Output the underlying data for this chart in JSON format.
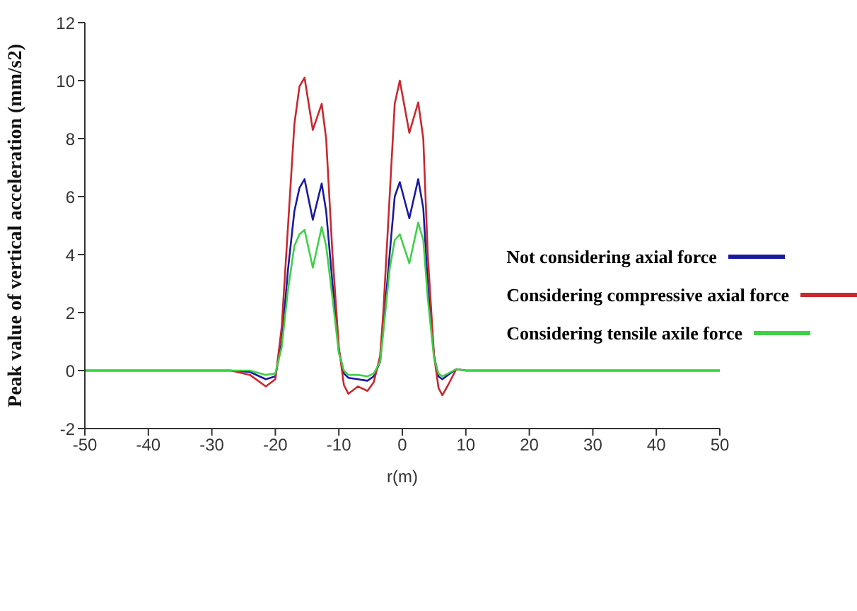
{
  "chart_data": {
    "type": "line",
    "xlabel": "r(m)",
    "ylabel": "Peak value of vertical acceleration (mm/s2)",
    "x": [
      -50,
      -27,
      -24,
      -21.5,
      -20,
      -19,
      -18,
      -17,
      -16.2,
      -15.4,
      -14.1,
      -12.7,
      -12,
      -11,
      -10,
      -9.2,
      -8.5,
      -7,
      -5.5,
      -4.5,
      -3.5,
      -3,
      -2,
      -1.2,
      -0.4,
      1.1,
      2.5,
      3.3,
      4,
      5,
      5.7,
      6.3,
      7.2,
      8.5,
      10,
      50
    ],
    "series": [
      {
        "name": "Not considering axial force",
        "color": "#1a1aa0",
        "values": [
          0,
          0,
          -0.05,
          -0.3,
          -0.2,
          1,
          3.5,
          5.5,
          6.3,
          6.6,
          5.2,
          6.45,
          5.5,
          3,
          0.7,
          -0.1,
          -0.25,
          -0.3,
          -0.35,
          -0.2,
          0.3,
          1.5,
          4,
          6,
          6.5,
          5.25,
          6.6,
          5.6,
          3,
          0.5,
          -0.2,
          -0.3,
          -0.15,
          0.05,
          0,
          0
        ]
      },
      {
        "name": "Considering compressive axial force",
        "color": "#c8282e",
        "values": [
          0,
          0,
          -0.15,
          -0.55,
          -0.3,
          1.5,
          5,
          8.5,
          9.8,
          10.1,
          8.3,
          9.2,
          8,
          4,
          0.8,
          -0.5,
          -0.8,
          -0.55,
          -0.7,
          -0.4,
          0.5,
          2,
          6,
          9.2,
          10,
          8.2,
          9.25,
          8,
          4,
          0.5,
          -0.6,
          -0.85,
          -0.5,
          0.05,
          0,
          0
        ]
      },
      {
        "name": "Considering tensile axile force",
        "color": "#40d048",
        "values": [
          0,
          0,
          0,
          -0.15,
          -0.1,
          0.8,
          2.8,
          4.3,
          4.7,
          4.85,
          3.55,
          4.95,
          4.3,
          2.5,
          0.6,
          0,
          -0.15,
          -0.15,
          -0.2,
          -0.1,
          0.3,
          1.3,
          3.5,
          4.5,
          4.7,
          3.7,
          5.1,
          4.5,
          2.5,
          0.4,
          -0.1,
          -0.2,
          -0.1,
          0.05,
          0,
          0
        ]
      }
    ],
    "xlim": [
      -50,
      50
    ],
    "xticks": [
      -50,
      -40,
      -30,
      -20,
      -10,
      0,
      10,
      20,
      30,
      40,
      50
    ],
    "ylim": [
      -2,
      12
    ],
    "yticks": [
      -2,
      0,
      2,
      4,
      6,
      8,
      10,
      12
    ],
    "legend": "right",
    "marker": "none",
    "line_style": "solid"
  }
}
